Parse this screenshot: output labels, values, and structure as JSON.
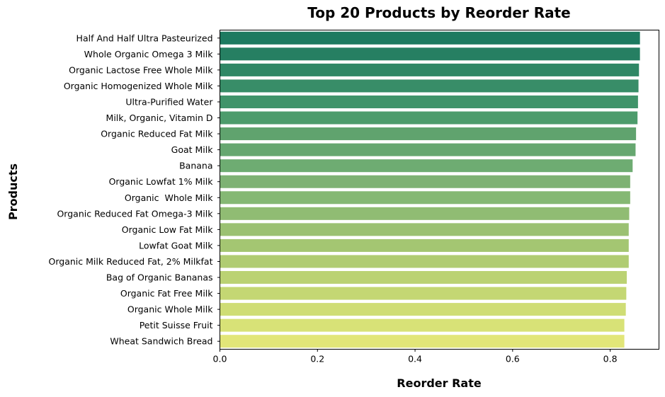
{
  "chart_data": {
    "type": "bar",
    "orientation": "horizontal",
    "title": "Top 20 Products by Reorder Rate",
    "xlabel": "Reorder Rate",
    "ylabel": "Products",
    "xlim": [
      0,
      0.9
    ],
    "xticks": [
      "0.0",
      "0.2",
      "0.4",
      "0.6",
      "0.8"
    ],
    "grid": false,
    "categories": [
      "Half And Half Ultra Pasteurized",
      "Whole Organic Omega 3 Milk",
      "Organic Lactose Free Whole Milk",
      "Organic Homogenized Whole Milk",
      "Ultra-Purified Water",
      "Milk, Organic, Vitamin D",
      "Organic Reduced Fat Milk",
      "Goat Milk",
      "Banana",
      "Organic Lowfat 1% Milk",
      "Organic  Whole Milk",
      "Organic Reduced Fat Omega-3 Milk",
      "Organic Low Fat Milk",
      "Lowfat Goat Milk",
      "Organic Milk Reduced Fat, 2% Milkfat",
      "Bag of Organic Bananas",
      "Organic Fat Free Milk",
      "Organic Whole Milk",
      "Petit Suisse Fruit",
      "Wheat Sandwich Bread"
    ],
    "values": [
      0.861,
      0.861,
      0.859,
      0.858,
      0.857,
      0.856,
      0.853,
      0.852,
      0.846,
      0.841,
      0.841,
      0.839,
      0.838,
      0.838,
      0.838,
      0.834,
      0.833,
      0.832,
      0.829,
      0.829
    ],
    "colors": [
      "#1d7a60",
      "#267f62",
      "#2f8765",
      "#388d68",
      "#40946a",
      "#4d9c6c",
      "#60a36e",
      "#66a770",
      "#6eac72",
      "#7eb273",
      "#85b874",
      "#90bc73",
      "#9bc172",
      "#a4c672",
      "#b0cc72",
      "#bbd273",
      "#c4d773",
      "#cfdd75",
      "#d8e277",
      "#e2e678"
    ]
  }
}
